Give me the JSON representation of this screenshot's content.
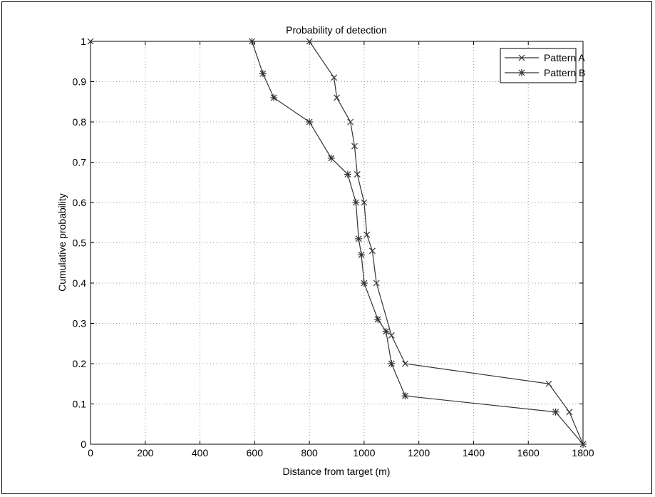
{
  "chart_data": {
    "type": "line",
    "title": "Probability of detection",
    "xlabel": "Distance from target (m)",
    "ylabel": "Cumulative probability",
    "xlim": [
      0,
      1800
    ],
    "ylim": [
      0,
      1
    ],
    "xticks": [
      0,
      200,
      400,
      600,
      800,
      1000,
      1200,
      1400,
      1600,
      1800
    ],
    "yticks": [
      0,
      0.1,
      0.2,
      0.3,
      0.4,
      0.5,
      0.6,
      0.7,
      0.8,
      0.9,
      1
    ],
    "grid": true,
    "legend_position": "top-right",
    "line_color": "#333333",
    "series": [
      {
        "name": "Pattern A",
        "marker": "x",
        "x": [
          0,
          800,
          890,
          900,
          950,
          965,
          975,
          1000,
          1010,
          1030,
          1045,
          1100,
          1150,
          1675,
          1750,
          1800
        ],
        "y": [
          1,
          1,
          0.91,
          0.86,
          0.8,
          0.74,
          0.67,
          0.6,
          0.52,
          0.48,
          0.4,
          0.27,
          0.2,
          0.15,
          0.08,
          0.0
        ]
      },
      {
        "name": "Pattern B",
        "marker": "*",
        "x": [
          590,
          630,
          670,
          800,
          880,
          940,
          970,
          980,
          990,
          1000,
          1050,
          1080,
          1100,
          1150,
          1700,
          1800
        ],
        "y": [
          1,
          0.92,
          0.86,
          0.8,
          0.71,
          0.67,
          0.6,
          0.51,
          0.47,
          0.4,
          0.31,
          0.28,
          0.2,
          0.12,
          0.08,
          0.0
        ]
      }
    ]
  }
}
